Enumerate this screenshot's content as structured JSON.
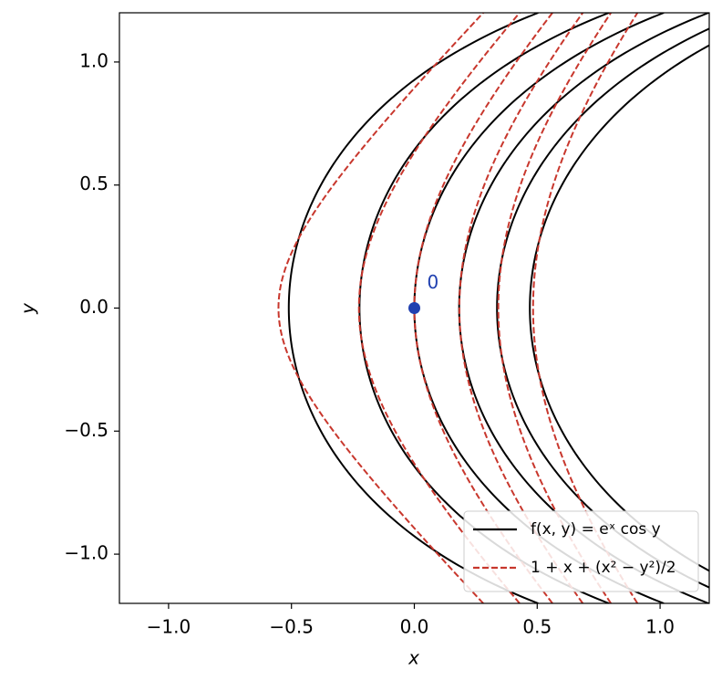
{
  "chart_data": {
    "type": "contour",
    "xlabel": "x",
    "ylabel": "y",
    "xlim": [
      -1.2,
      1.2
    ],
    "ylim": [
      -1.2,
      1.2
    ],
    "xticks": [
      {
        "value": -1.0,
        "label": "−1.0"
      },
      {
        "value": -0.5,
        "label": "−0.5"
      },
      {
        "value": 0.0,
        "label": "0.0"
      },
      {
        "value": 0.5,
        "label": "0.5"
      },
      {
        "value": 1.0,
        "label": "1.0"
      }
    ],
    "yticks": [
      {
        "value": -1.0,
        "label": "−1.0"
      },
      {
        "value": -0.5,
        "label": "−0.5"
      },
      {
        "value": 0.0,
        "label": "0.0"
      },
      {
        "value": 0.5,
        "label": "0.5"
      },
      {
        "value": 1.0,
        "label": "1.0"
      }
    ],
    "levels": [
      0.6,
      0.8,
      1.0,
      1.2,
      1.4,
      1.6
    ],
    "series": [
      {
        "name": "f(x, y) = eˣ cos y",
        "color": "#000000",
        "dash": false
      },
      {
        "name": "1 + x + (x² − y²)/2",
        "color": "#c8372d",
        "dash": true
      }
    ],
    "point": {
      "x": 0,
      "y": 0,
      "label": "0",
      "color": "#2040b0"
    },
    "legend": "lower right"
  }
}
